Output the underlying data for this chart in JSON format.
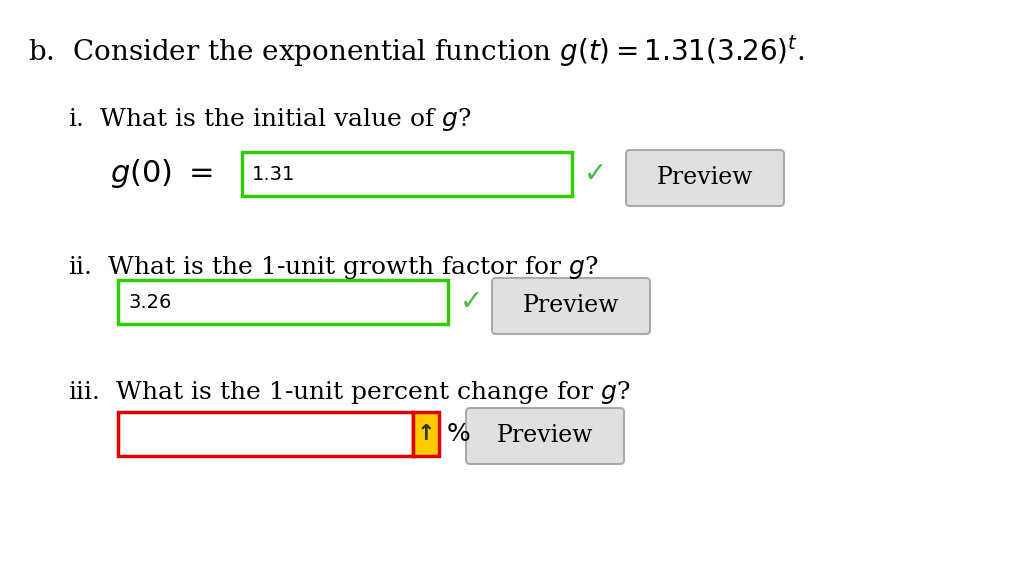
{
  "background_color": "#ffffff",
  "fig_width": 10.16,
  "fig_height": 5.64,
  "dpi": 100,
  "title_text_plain": "b.  Consider the exponential function ",
  "title_math": "g(t) = 1.31(3.26)^{t}",
  "title_suffix": ".",
  "q1_label_plain": "i.  What is the initial value of ",
  "q1_label_italic": "g",
  "q1_label_suffix": "?",
  "q2_label_plain": "ii.  What is the 1-unit growth factor for ",
  "q2_label_italic": "g",
  "q2_label_suffix": "?",
  "q3_label_plain": "iii.  What is the 1-unit percent change for ",
  "q3_label_italic": "g",
  "q3_label_suffix": "?",
  "g0_label": "g(0)  =",
  "q1_answer": "1.31",
  "q2_answer": "3.26",
  "green_check": "✓",
  "check_color": "#44bb44",
  "input_box_green": "#33cc00",
  "input_box_red": "#dd0000",
  "preview_bg": "#e0e0e0",
  "preview_border": "#aaaaaa",
  "preview_text": "Preview",
  "arrow_bg": "#ffcc00",
  "arrow_char": "↑",
  "pct_char": "%",
  "heading_fontsize": 20,
  "body_fontsize": 18,
  "input_fontsize": 14,
  "preview_fontsize": 17,
  "label_fontsize": 19
}
